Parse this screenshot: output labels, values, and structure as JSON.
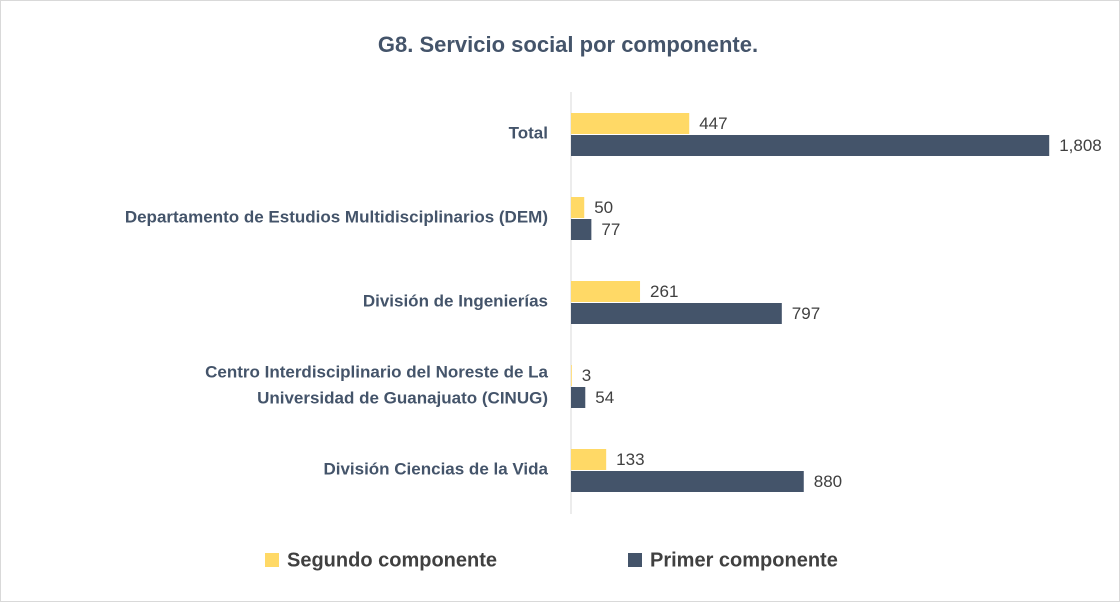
{
  "chart_data": {
    "type": "hbar",
    "title": "G8. Servicio social por componente.",
    "categories": [
      "Total",
      "Departamento de Estudios Multidisciplinarios (DEM)",
      "División de Ingenierías",
      [
        "Centro Interdisciplinario del Noreste de La",
        "Universidad de Guanajuato (CINUG)"
      ],
      "División Ciencias de la Vida"
    ],
    "series": [
      {
        "name": "Segundo componente",
        "color": "#ffd966",
        "values": [
          447,
          50,
          261,
          3,
          133
        ],
        "value_labels": [
          "447",
          "50",
          "261",
          "3",
          "133"
        ]
      },
      {
        "name": "Primer componente",
        "color": "#44546a",
        "values": [
          1808,
          77,
          797,
          54,
          880
        ],
        "value_labels": [
          "1,808",
          "77",
          "797",
          "54",
          "880"
        ]
      }
    ],
    "xlim": [
      0,
      2000
    ],
    "legend": "bottom"
  }
}
